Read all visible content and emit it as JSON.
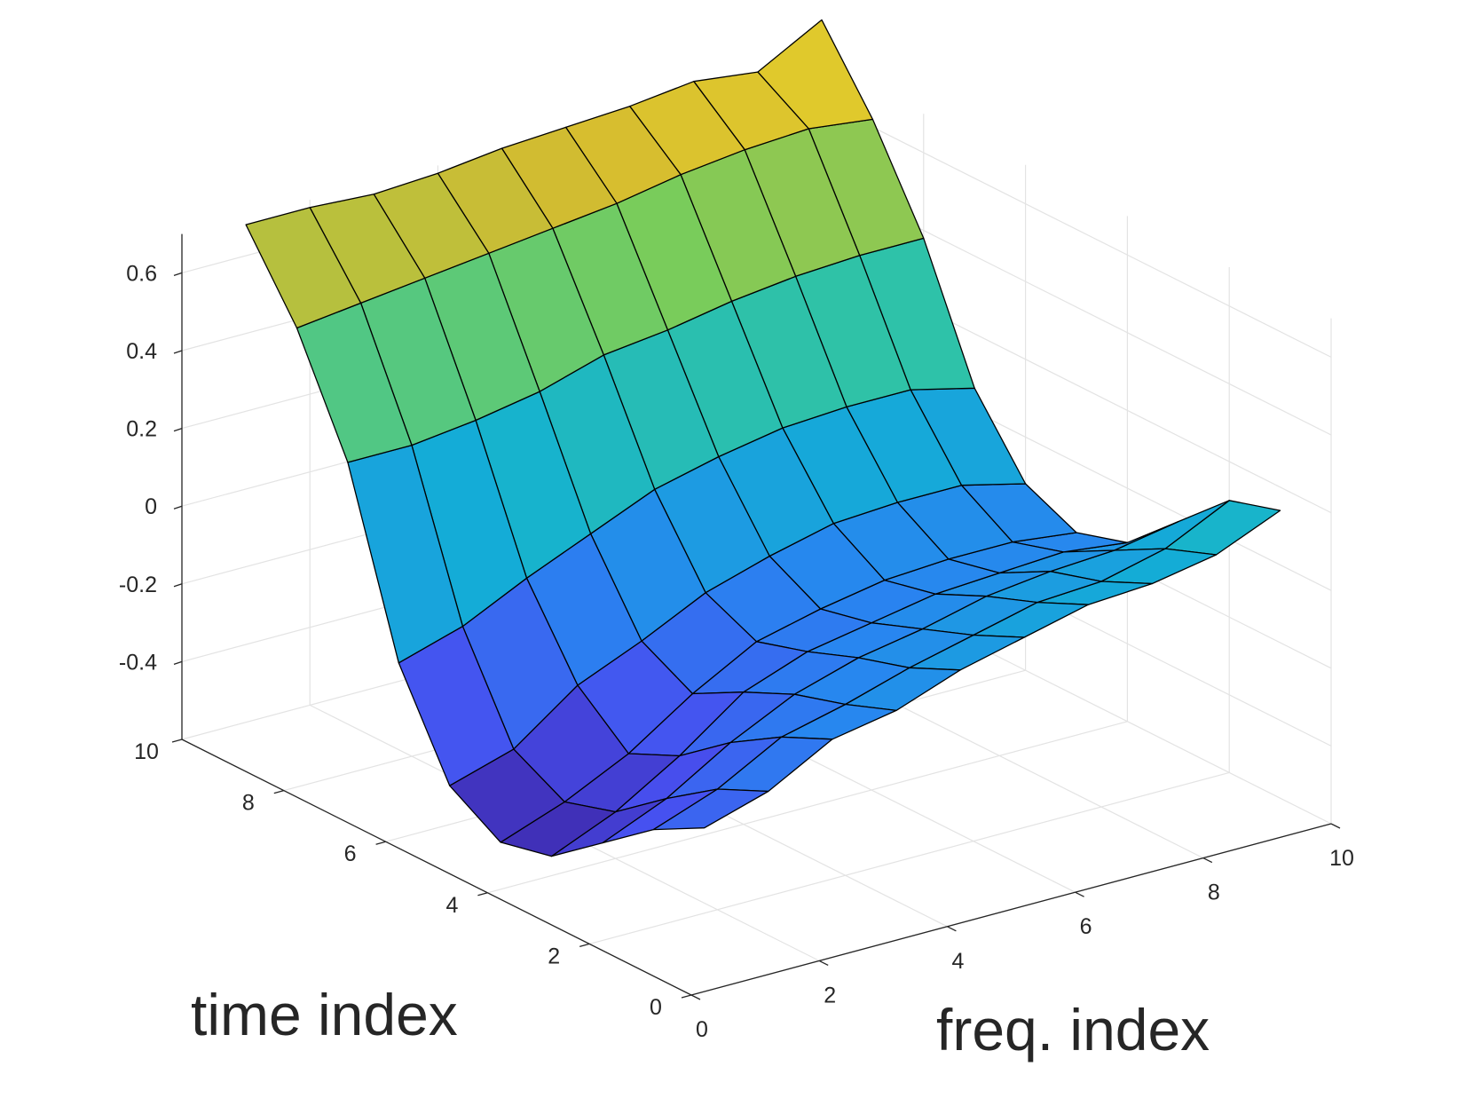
{
  "chart_data": {
    "type": "surface",
    "x_label": "freq. index",
    "y_label": "time index",
    "z_label": "",
    "x_ticks": [
      0,
      2,
      4,
      6,
      8,
      10
    ],
    "y_ticks": [
      0,
      2,
      4,
      6,
      8,
      10
    ],
    "z_ticks": [
      -0.4,
      -0.2,
      0,
      0.2,
      0.4,
      0.6
    ],
    "xlim": [
      0,
      10
    ],
    "ylim": [
      0,
      10
    ],
    "zlim": [
      -0.6,
      0.7
    ],
    "grid": true,
    "colormap": "parula",
    "edge_color": "#000000",
    "x": [
      1,
      2,
      3,
      4,
      5,
      6,
      7,
      8,
      9,
      10
    ],
    "y": [
      1,
      2,
      3,
      4,
      5,
      6,
      7,
      8,
      9,
      10
    ],
    "z": [
      [
        -0.28,
        -0.23,
        -0.14,
        -0.11,
        -0.05,
        -0.01,
        0.03,
        0.04,
        0.07,
        0.14
      ],
      [
        -0.35,
        -0.29,
        -0.2,
        -0.16,
        -0.11,
        -0.07,
        -0.03,
        -0.02,
        0.02,
        0.1
      ],
      [
        -0.45,
        -0.38,
        -0.28,
        -0.2,
        -0.15,
        -0.12,
        -0.08,
        -0.06,
        -0.05,
        -0.02
      ],
      [
        -0.55,
        -0.48,
        -0.38,
        -0.26,
        -0.2,
        -0.17,
        -0.14,
        -0.13,
        -0.12,
        -0.14
      ],
      [
        -0.58,
        -0.52,
        -0.44,
        -0.33,
        -0.24,
        -0.2,
        -0.17,
        -0.16,
        -0.16,
        -0.18
      ],
      [
        -0.5,
        -0.45,
        -0.33,
        -0.26,
        -0.18,
        -0.13,
        -0.09,
        -0.08,
        -0.08,
        -0.12
      ],
      [
        -0.25,
        -0.2,
        -0.12,
        -0.05,
        0.02,
        0.06,
        0.09,
        0.1,
        0.1,
        0.06
      ],
      [
        0.2,
        0.2,
        0.22,
        0.25,
        0.3,
        0.32,
        0.35,
        0.37,
        0.38,
        0.38
      ],
      [
        0.48,
        0.5,
        0.52,
        0.54,
        0.56,
        0.58,
        0.61,
        0.63,
        0.64,
        0.62
      ],
      [
        0.68,
        0.68,
        0.67,
        0.68,
        0.7,
        0.71,
        0.72,
        0.74,
        0.72,
        0.81
      ]
    ]
  }
}
